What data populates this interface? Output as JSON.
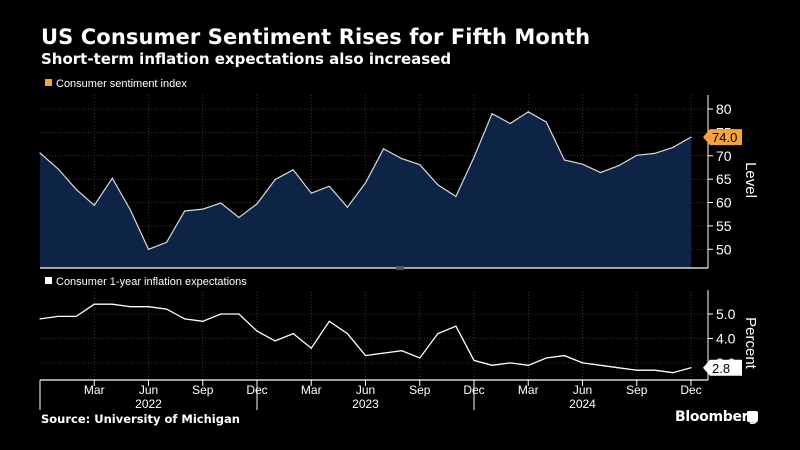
{
  "title": "US Consumer Sentiment Rises for Fifth Month",
  "subtitle": "Short-term inflation expectations also increased",
  "source": "Source: University of Michigan",
  "brand": "Bloomberg",
  "colors": {
    "background": "#000000",
    "area_fill": "#0e2446",
    "line": "#d9d9d9",
    "legend_top": "#f5a33d",
    "callout_top": "#f5a33d",
    "grid": "#555555"
  },
  "chart_data": [
    {
      "type": "area",
      "legend": "Consumer sentiment index",
      "ylabel": "Level",
      "ylim": [
        46,
        83
      ],
      "yticks": [
        50,
        55,
        60,
        65,
        70,
        75,
        80
      ],
      "last_value_label": "74.0",
      "x": [
        "Dec 2021",
        "Jan 2022",
        "Feb 2022",
        "Mar 2022",
        "Apr 2022",
        "May 2022",
        "Jun 2022",
        "Jul 2022",
        "Aug 2022",
        "Sep 2022",
        "Oct 2022",
        "Nov 2022",
        "Dec 2022",
        "Jan 2023",
        "Feb 2023",
        "Mar 2023",
        "Apr 2023",
        "May 2023",
        "Jun 2023",
        "Jul 2023",
        "Aug 2023",
        "Sep 2023",
        "Oct 2023",
        "Nov 2023",
        "Dec 2023",
        "Jan 2024",
        "Feb 2024",
        "Mar 2024",
        "Apr 2024",
        "May 2024",
        "Jun 2024",
        "Jul 2024",
        "Aug 2024",
        "Sep 2024",
        "Oct 2024",
        "Nov 2024",
        "Dec 2024"
      ],
      "values": [
        70.6,
        67.2,
        62.8,
        59.4,
        65.2,
        58.4,
        50.0,
        51.5,
        58.2,
        58.6,
        59.9,
        56.8,
        59.7,
        64.9,
        67.0,
        62.0,
        63.5,
        59.0,
        64.2,
        71.5,
        69.4,
        68.1,
        63.8,
        61.3,
        69.7,
        79.0,
        76.9,
        79.4,
        77.2,
        69.1,
        68.2,
        66.4,
        67.9,
        70.1,
        70.5,
        71.8,
        74.0
      ]
    },
    {
      "type": "line",
      "legend": "Consumer 1-year inflation expectations",
      "ylabel": "Percent",
      "ylim": [
        2.3,
        5.9
      ],
      "yticks": [
        3.0,
        4.0,
        5.0
      ],
      "ytick_labels": [
        "3.0",
        "4.0",
        "5.0"
      ],
      "last_value_label": "2.8",
      "x": [
        "Dec 2021",
        "Jan 2022",
        "Feb 2022",
        "Mar 2022",
        "Apr 2022",
        "May 2022",
        "Jun 2022",
        "Jul 2022",
        "Aug 2022",
        "Sep 2022",
        "Oct 2022",
        "Nov 2022",
        "Dec 2022",
        "Jan 2023",
        "Feb 2023",
        "Mar 2023",
        "Apr 2023",
        "May 2023",
        "Jun 2023",
        "Jul 2023",
        "Aug 2023",
        "Sep 2023",
        "Oct 2023",
        "Nov 2023",
        "Dec 2023",
        "Jan 2024",
        "Feb 2024",
        "Mar 2024",
        "Apr 2024",
        "May 2024",
        "Jun 2024",
        "Jul 2024",
        "Aug 2024",
        "Sep 2024",
        "Oct 2024",
        "Nov 2024",
        "Dec 2024"
      ],
      "values": [
        4.8,
        4.9,
        4.9,
        5.4,
        5.4,
        5.3,
        5.3,
        5.2,
        4.8,
        4.7,
        5.0,
        5.0,
        4.3,
        3.9,
        4.2,
        3.6,
        4.7,
        4.2,
        3.3,
        3.4,
        3.5,
        3.2,
        4.2,
        4.5,
        3.1,
        2.9,
        3.0,
        2.9,
        3.2,
        3.3,
        3.0,
        2.9,
        2.8,
        2.7,
        2.7,
        2.6,
        2.8
      ]
    }
  ],
  "x_axis": {
    "month_ticks": [
      "Mar",
      "Jun",
      "Sep",
      "Dec",
      "Mar",
      "Jun",
      "Sep",
      "Dec",
      "Mar",
      "Jun",
      "Sep",
      "Dec"
    ],
    "years": [
      "2022",
      "2023",
      "2024"
    ]
  }
}
